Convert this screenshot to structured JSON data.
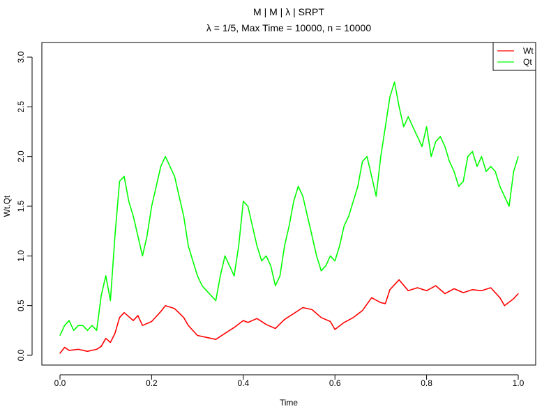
{
  "chart_data": {
    "type": "line",
    "title": "M | M | λ | SRPT",
    "subtitle": "λ = 1/5, Max Time = 10000, n = 10000",
    "xlabel": "Time",
    "ylabel": "Wt,Qt",
    "xlim": [
      0,
      1
    ],
    "ylim": [
      0,
      3.05
    ],
    "x_ticks": [
      "0.0",
      "0.2",
      "0.4",
      "0.6",
      "0.8",
      "1.0"
    ],
    "y_ticks": [
      "0.0",
      "0.5",
      "1.0",
      "1.5",
      "2.0",
      "2.5",
      "3.0"
    ],
    "legend_position": "top-right",
    "grid": false,
    "series": [
      {
        "name": "Wt",
        "color": "#ff0000",
        "x": [
          0.0,
          0.01,
          0.02,
          0.04,
          0.06,
          0.08,
          0.09,
          0.1,
          0.11,
          0.12,
          0.13,
          0.14,
          0.16,
          0.17,
          0.18,
          0.2,
          0.22,
          0.23,
          0.25,
          0.27,
          0.28,
          0.3,
          0.32,
          0.34,
          0.36,
          0.38,
          0.4,
          0.41,
          0.43,
          0.45,
          0.47,
          0.49,
          0.51,
          0.53,
          0.55,
          0.57,
          0.59,
          0.6,
          0.62,
          0.64,
          0.66,
          0.68,
          0.7,
          0.71,
          0.72,
          0.74,
          0.76,
          0.78,
          0.8,
          0.82,
          0.84,
          0.86,
          0.88,
          0.9,
          0.92,
          0.94,
          0.96,
          0.97,
          0.99,
          1.0
        ],
        "values": [
          0.02,
          0.08,
          0.05,
          0.06,
          0.04,
          0.06,
          0.09,
          0.17,
          0.13,
          0.22,
          0.38,
          0.43,
          0.35,
          0.4,
          0.3,
          0.34,
          0.44,
          0.5,
          0.47,
          0.38,
          0.3,
          0.2,
          0.18,
          0.16,
          0.22,
          0.28,
          0.35,
          0.33,
          0.37,
          0.31,
          0.27,
          0.36,
          0.42,
          0.48,
          0.46,
          0.38,
          0.34,
          0.26,
          0.33,
          0.38,
          0.45,
          0.58,
          0.53,
          0.52,
          0.66,
          0.76,
          0.65,
          0.68,
          0.65,
          0.7,
          0.62,
          0.67,
          0.63,
          0.66,
          0.65,
          0.68,
          0.58,
          0.5,
          0.57,
          0.62
        ]
      },
      {
        "name": "Qt",
        "color": "#00ff00",
        "x": [
          0.0,
          0.01,
          0.02,
          0.03,
          0.04,
          0.05,
          0.06,
          0.07,
          0.08,
          0.09,
          0.1,
          0.11,
          0.12,
          0.13,
          0.14,
          0.15,
          0.16,
          0.17,
          0.18,
          0.19,
          0.2,
          0.21,
          0.22,
          0.23,
          0.24,
          0.25,
          0.26,
          0.27,
          0.28,
          0.29,
          0.3,
          0.31,
          0.32,
          0.33,
          0.34,
          0.35,
          0.36,
          0.37,
          0.38,
          0.39,
          0.4,
          0.41,
          0.42,
          0.43,
          0.44,
          0.45,
          0.46,
          0.47,
          0.48,
          0.49,
          0.5,
          0.51,
          0.52,
          0.53,
          0.54,
          0.55,
          0.56,
          0.57,
          0.58,
          0.59,
          0.6,
          0.61,
          0.62,
          0.63,
          0.64,
          0.65,
          0.66,
          0.67,
          0.68,
          0.69,
          0.7,
          0.71,
          0.72,
          0.73,
          0.74,
          0.75,
          0.76,
          0.77,
          0.78,
          0.79,
          0.8,
          0.81,
          0.82,
          0.83,
          0.84,
          0.85,
          0.86,
          0.87,
          0.88,
          0.89,
          0.9,
          0.91,
          0.92,
          0.93,
          0.94,
          0.95,
          0.96,
          0.97,
          0.98,
          0.99,
          1.0
        ],
        "values": [
          0.2,
          0.3,
          0.35,
          0.25,
          0.3,
          0.3,
          0.25,
          0.3,
          0.25,
          0.6,
          0.8,
          0.55,
          1.2,
          1.75,
          1.8,
          1.55,
          1.4,
          1.2,
          1.0,
          1.2,
          1.5,
          1.7,
          1.9,
          2.0,
          1.9,
          1.8,
          1.6,
          1.4,
          1.1,
          0.95,
          0.8,
          0.7,
          0.65,
          0.6,
          0.55,
          0.8,
          1.0,
          0.9,
          0.8,
          1.1,
          1.55,
          1.5,
          1.3,
          1.1,
          0.95,
          1.0,
          0.9,
          0.7,
          0.8,
          1.1,
          1.3,
          1.55,
          1.7,
          1.6,
          1.4,
          1.2,
          1.0,
          0.85,
          0.9,
          1.0,
          0.95,
          1.1,
          1.3,
          1.4,
          1.55,
          1.7,
          1.95,
          2.0,
          1.8,
          1.6,
          2.0,
          2.3,
          2.6,
          2.75,
          2.5,
          2.3,
          2.4,
          2.3,
          2.2,
          2.1,
          2.3,
          2.0,
          2.15,
          2.2,
          2.1,
          1.95,
          1.85,
          1.7,
          1.75,
          2.0,
          2.05,
          1.9,
          2.0,
          1.85,
          1.9,
          1.85,
          1.7,
          1.6,
          1.5,
          1.85,
          2.0
        ]
      }
    ]
  }
}
